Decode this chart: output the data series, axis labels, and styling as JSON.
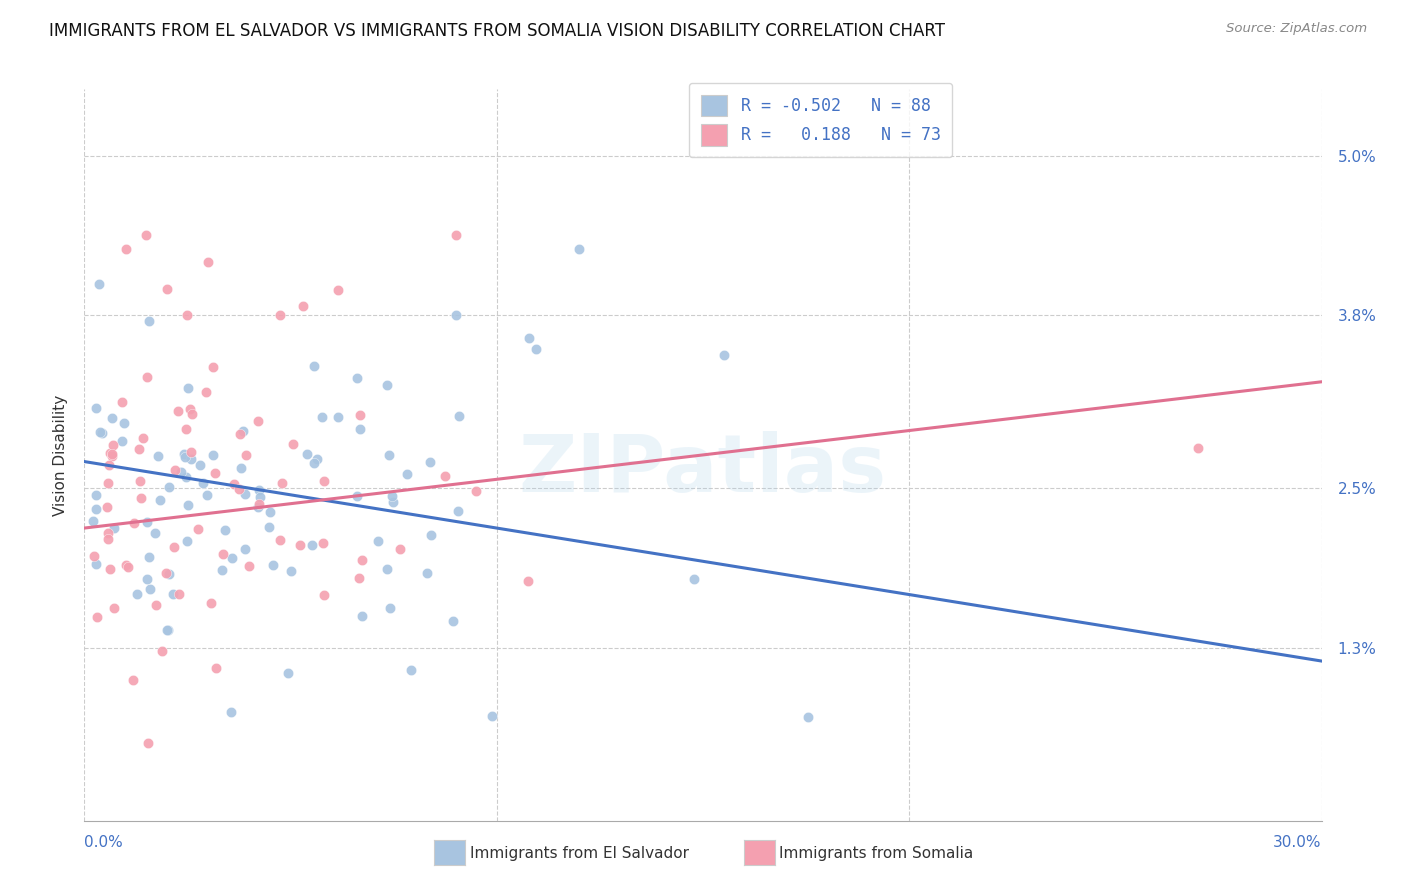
{
  "title": "IMMIGRANTS FROM EL SALVADOR VS IMMIGRANTS FROM SOMALIA VISION DISABILITY CORRELATION CHART",
  "source": "Source: ZipAtlas.com",
  "ylabel": "Vision Disability",
  "ytick_labels": [
    "1.3%",
    "2.5%",
    "3.8%",
    "5.0%"
  ],
  "ytick_values": [
    0.013,
    0.025,
    0.038,
    0.05
  ],
  "xlim": [
    0.0,
    0.3
  ],
  "ylim": [
    0.0,
    0.055
  ],
  "el_salvador_R": -0.502,
  "el_salvador_N": 88,
  "somalia_R": 0.188,
  "somalia_N": 73,
  "el_salvador_color": "#a8c4e0",
  "somalia_color": "#f4a0b0",
  "el_salvador_line_color": "#4472c4",
  "somalia_line_color": "#e07090",
  "background_color": "#ffffff",
  "grid_color": "#cccccc",
  "watermark": "ZIPatlas",
  "title_fontsize": 12,
  "legend_fontsize": 12,
  "el_salvador_line_y0": 0.027,
  "el_salvador_line_y1": 0.012,
  "somalia_line_y0": 0.022,
  "somalia_line_y1": 0.033
}
